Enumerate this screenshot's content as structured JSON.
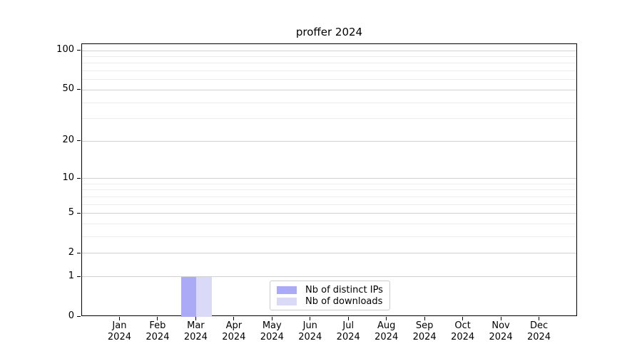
{
  "chart_data": {
    "type": "bar",
    "title": "proffer 2024",
    "x_categories": [
      "Jan",
      "Feb",
      "Mar",
      "Apr",
      "May",
      "Jun",
      "Jul",
      "Aug",
      "Sep",
      "Oct",
      "Nov",
      "Dec"
    ],
    "x_year_label": "2024",
    "series": [
      {
        "name": "Nb of distinct IPs",
        "color": "#aaaaf6",
        "values": [
          0,
          0,
          1,
          0,
          0,
          0,
          0,
          0,
          0,
          0,
          0,
          0
        ]
      },
      {
        "name": "Nb of downloads",
        "color": "#dadaf8",
        "values": [
          0,
          0,
          1,
          0,
          0,
          0,
          0,
          0,
          0,
          0,
          0,
          0
        ]
      }
    ],
    "y_scale": "log1p",
    "y_major_ticks": [
      0,
      1,
      2,
      5,
      10,
      20,
      50,
      100
    ],
    "y_minor_gridlines": [
      3,
      4,
      6,
      7,
      8,
      9,
      30,
      40,
      60,
      70,
      80,
      90
    ],
    "ylim": [
      0,
      112
    ],
    "xlabel": "",
    "ylabel": "",
    "grid": "horizontal",
    "legend_position": "lower center",
    "colors": {
      "axis": "#000000",
      "grid_major": "#d0d0d0",
      "grid_minor": "#ececec",
      "background": "#ffffff",
      "text": "#000000"
    }
  }
}
